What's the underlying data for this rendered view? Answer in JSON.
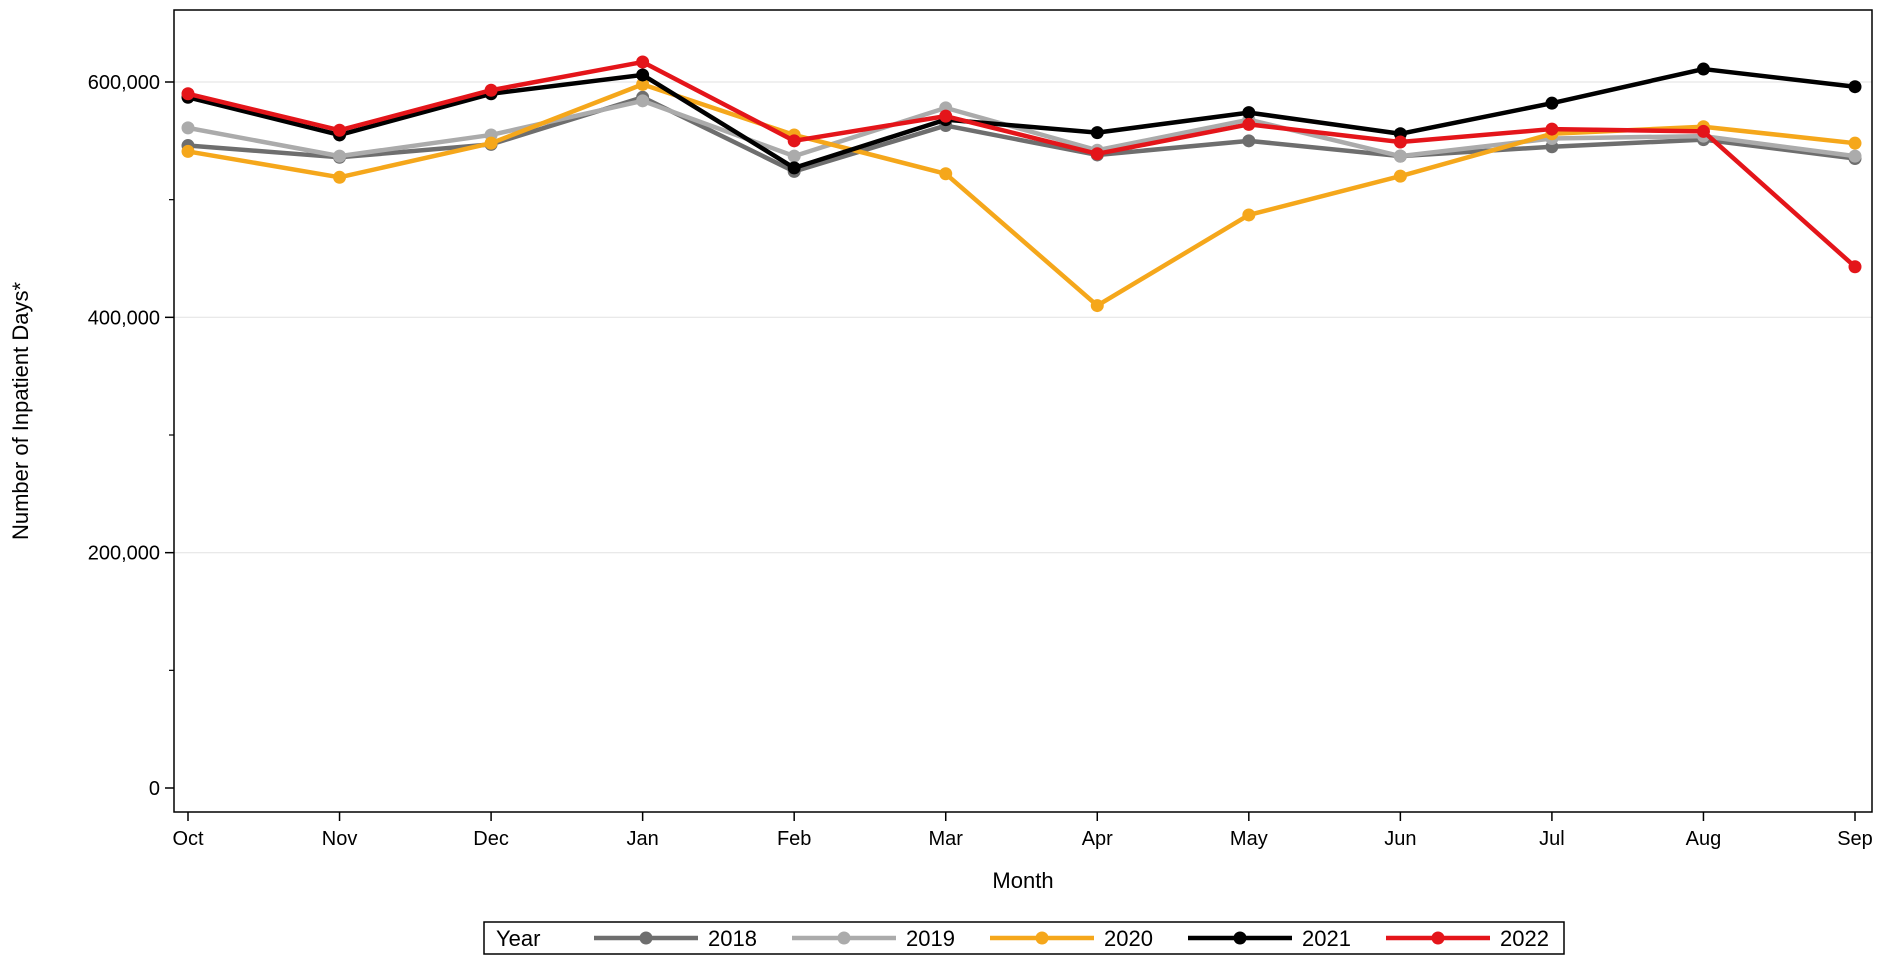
{
  "chart_data": {
    "type": "line",
    "xlabel": "Month",
    "ylabel": "Number of Inpatient Days*",
    "categories": [
      "Oct",
      "Nov",
      "Dec",
      "Jan",
      "Feb",
      "Mar",
      "Apr",
      "May",
      "Jun",
      "Jul",
      "Aug",
      "Sep"
    ],
    "ylim": [
      0,
      660000
    ],
    "yticks": [
      0,
      200000,
      400000,
      600000
    ],
    "yticks_minor": [
      100000,
      300000,
      500000
    ],
    "ytick_labels": [
      "0",
      "200,000",
      "400,000",
      "600,000"
    ],
    "grid": true,
    "legend": {
      "title": "Year",
      "position": "bottom-center"
    },
    "series": [
      {
        "name": "2018",
        "color": "#6e6e6e",
        "values": [
          546000,
          536000,
          547000,
          587000,
          524000,
          563000,
          538000,
          550000,
          537000,
          545000,
          551000,
          535000
        ]
      },
      {
        "name": "2019",
        "color": "#ababab",
        "values": [
          561000,
          537000,
          555000,
          584000,
          537000,
          578000,
          542000,
          568000,
          537000,
          552000,
          554000,
          537000
        ]
      },
      {
        "name": "2020",
        "color": "#f5a71b",
        "values": [
          541000,
          519000,
          548000,
          598000,
          555000,
          522000,
          410000,
          487000,
          520000,
          556000,
          562000,
          548000
        ]
      },
      {
        "name": "2021",
        "color": "#000000",
        "values": [
          587000,
          555000,
          590000,
          606000,
          527000,
          568000,
          557000,
          574000,
          556000,
          582000,
          611000,
          596000
        ]
      },
      {
        "name": "2022",
        "color": "#e4151a",
        "values": [
          590000,
          559000,
          593000,
          617000,
          550000,
          571000,
          539000,
          564000,
          549000,
          560000,
          558000,
          443000
        ]
      }
    ]
  }
}
